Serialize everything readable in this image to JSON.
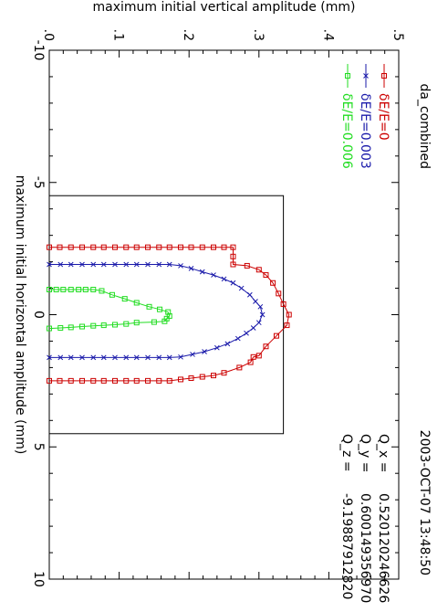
{
  "chart_data": {
    "type": "line",
    "title": "da_combined",
    "timestamp": "2003-OCT-07  13:48:50",
    "xlabel": "maximum initial horizontal amplitude (mm)",
    "ylabel": "maximum initial vertical amplitude (mm)",
    "xlim": [
      -10,
      10
    ],
    "ylim": [
      0,
      0.5
    ],
    "x_ticks": [
      "-10",
      "-5",
      "0",
      "5",
      "10"
    ],
    "y_ticks": [
      ".0",
      ".1",
      ".2",
      ".3",
      ".4",
      ".5"
    ],
    "grid": false,
    "legend_position": "top-right",
    "rotation": "page rotated 90 degrees clockwise",
    "boundary_box": {
      "xmin": -4.5,
      "xmax": 4.5,
      "ymin": 0,
      "ymax": 0.335
    },
    "annotations": [
      {
        "label": "Q_x  =",
        "value": "0.520120246626"
      },
      {
        "label": "Q_y  =",
        "value": "0.600149356970"
      },
      {
        "label": "Q_z  =",
        "value": "-9.19887912820"
      }
    ],
    "series": [
      {
        "name": "δE/E=0",
        "color": "#cc0000",
        "marker": "square",
        "points": [
          [
            -2.55,
            0.0
          ],
          [
            -2.55,
            0.015
          ],
          [
            -2.55,
            0.031
          ],
          [
            -2.55,
            0.047
          ],
          [
            -2.55,
            0.063
          ],
          [
            -2.55,
            0.078
          ],
          [
            -2.55,
            0.094
          ],
          [
            -2.55,
            0.11
          ],
          [
            -2.55,
            0.125
          ],
          [
            -2.55,
            0.141
          ],
          [
            -2.55,
            0.157
          ],
          [
            -2.55,
            0.172
          ],
          [
            -2.55,
            0.188
          ],
          [
            -2.55,
            0.203
          ],
          [
            -2.55,
            0.219
          ],
          [
            -2.55,
            0.235
          ],
          [
            -2.55,
            0.25
          ],
          [
            -2.55,
            0.263
          ],
          [
            -2.2,
            0.263
          ],
          [
            -1.9,
            0.263
          ],
          [
            -1.85,
            0.283
          ],
          [
            -1.7,
            0.3
          ],
          [
            -1.5,
            0.31
          ],
          [
            -1.2,
            0.32
          ],
          [
            -0.8,
            0.328
          ],
          [
            -0.4,
            0.335
          ],
          [
            0,
            0.343
          ],
          [
            0.4,
            0.34
          ],
          [
            0.8,
            0.325
          ],
          [
            1.2,
            0.31
          ],
          [
            1.55,
            0.3
          ],
          [
            1.6,
            0.292
          ],
          [
            1.8,
            0.288
          ],
          [
            2.0,
            0.272
          ],
          [
            2.2,
            0.25
          ],
          [
            2.3,
            0.235
          ],
          [
            2.35,
            0.219
          ],
          [
            2.4,
            0.203
          ],
          [
            2.45,
            0.188
          ],
          [
            2.5,
            0.172
          ],
          [
            2.5,
            0.157
          ],
          [
            2.5,
            0.141
          ],
          [
            2.5,
            0.125
          ],
          [
            2.5,
            0.11
          ],
          [
            2.5,
            0.094
          ],
          [
            2.5,
            0.078
          ],
          [
            2.5,
            0.063
          ],
          [
            2.5,
            0.047
          ],
          [
            2.5,
            0.031
          ],
          [
            2.5,
            0.015
          ],
          [
            2.5,
            0.0
          ]
        ]
      },
      {
        "name": "δE/E=0.003",
        "color": "#1a1aaa",
        "marker": "x",
        "points": [
          [
            -1.9,
            0.0
          ],
          [
            -1.9,
            0.016
          ],
          [
            -1.9,
            0.031
          ],
          [
            -1.9,
            0.047
          ],
          [
            -1.9,
            0.063
          ],
          [
            -1.9,
            0.078
          ],
          [
            -1.9,
            0.094
          ],
          [
            -1.9,
            0.11
          ],
          [
            -1.9,
            0.125
          ],
          [
            -1.9,
            0.141
          ],
          [
            -1.9,
            0.157
          ],
          [
            -1.9,
            0.172
          ],
          [
            -1.85,
            0.188
          ],
          [
            -1.75,
            0.203
          ],
          [
            -1.62,
            0.219
          ],
          [
            -1.5,
            0.235
          ],
          [
            -1.35,
            0.25
          ],
          [
            -1.2,
            0.263
          ],
          [
            -1.0,
            0.275
          ],
          [
            -0.75,
            0.287
          ],
          [
            -0.5,
            0.295
          ],
          [
            -0.3,
            0.302
          ],
          [
            0,
            0.305
          ],
          [
            0.3,
            0.3
          ],
          [
            0.5,
            0.292
          ],
          [
            0.7,
            0.282
          ],
          [
            0.9,
            0.27
          ],
          [
            1.1,
            0.255
          ],
          [
            1.25,
            0.24
          ],
          [
            1.4,
            0.222
          ],
          [
            1.5,
            0.205
          ],
          [
            1.6,
            0.188
          ],
          [
            1.62,
            0.172
          ],
          [
            1.62,
            0.157
          ],
          [
            1.62,
            0.141
          ],
          [
            1.62,
            0.125
          ],
          [
            1.62,
            0.11
          ],
          [
            1.62,
            0.094
          ],
          [
            1.62,
            0.078
          ],
          [
            1.62,
            0.063
          ],
          [
            1.62,
            0.047
          ],
          [
            1.62,
            0.031
          ],
          [
            1.62,
            0.016
          ],
          [
            1.62,
            0.0
          ]
        ]
      },
      {
        "name": "δE/E=0.006",
        "color": "#22dd22",
        "marker": "square",
        "points": [
          [
            -0.95,
            0.0
          ],
          [
            -0.95,
            0.01
          ],
          [
            -0.95,
            0.02
          ],
          [
            -0.95,
            0.031
          ],
          [
            -0.95,
            0.042
          ],
          [
            -0.95,
            0.052
          ],
          [
            -0.95,
            0.063
          ],
          [
            -0.9,
            0.075
          ],
          [
            -0.75,
            0.09
          ],
          [
            -0.6,
            0.108
          ],
          [
            -0.45,
            0.125
          ],
          [
            -0.3,
            0.143
          ],
          [
            -0.2,
            0.158
          ],
          [
            -0.1,
            0.17
          ],
          [
            0.05,
            0.172
          ],
          [
            0.15,
            0.168
          ],
          [
            0.25,
            0.165
          ],
          [
            0.28,
            0.15
          ],
          [
            0.3,
            0.125
          ],
          [
            0.35,
            0.11
          ],
          [
            0.38,
            0.094
          ],
          [
            0.4,
            0.078
          ],
          [
            0.42,
            0.063
          ],
          [
            0.45,
            0.047
          ],
          [
            0.48,
            0.031
          ],
          [
            0.5,
            0.016
          ],
          [
            0.52,
            0.0
          ]
        ]
      }
    ]
  }
}
